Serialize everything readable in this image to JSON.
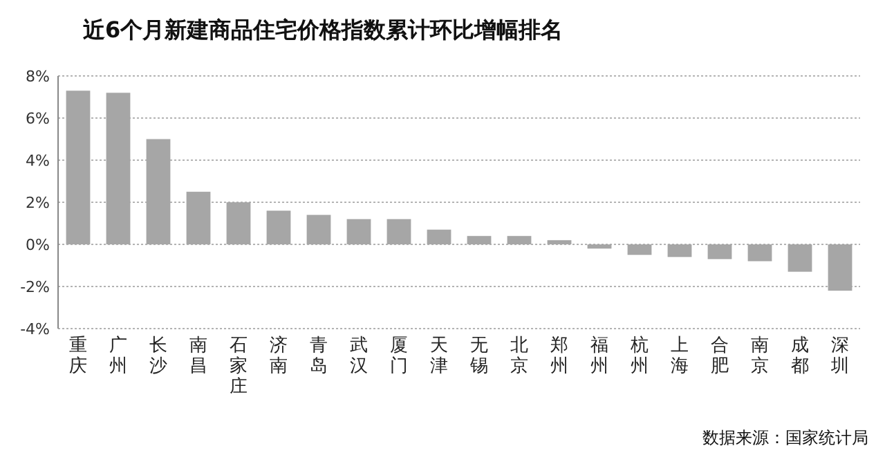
{
  "chart_data": {
    "type": "bar",
    "title": "近6个月新建商品住宅价格指数累计环比增幅排名",
    "categories": [
      "重庆",
      "广州",
      "长沙",
      "南昌",
      "石家庄",
      "济南",
      "青岛",
      "武汉",
      "厦门",
      "天津",
      "无锡",
      "北京",
      "郑州",
      "福州",
      "杭州",
      "上海",
      "合肥",
      "南京",
      "成都",
      "深圳"
    ],
    "values": [
      7.3,
      7.2,
      5.0,
      2.5,
      2.0,
      1.6,
      1.4,
      1.2,
      1.2,
      0.7,
      0.4,
      0.4,
      0.2,
      -0.2,
      -0.5,
      -0.6,
      -0.7,
      -0.8,
      -1.3,
      -2.2
    ],
    "color": "#a6a6a6",
    "ylim": [
      -4,
      8
    ],
    "yticks": [
      {
        "value": -4,
        "label": "-4%"
      },
      {
        "value": -2,
        "label": "-2%"
      },
      {
        "value": 0,
        "label": "0%"
      },
      {
        "value": 2,
        "label": "2%"
      },
      {
        "value": 4,
        "label": "4%"
      },
      {
        "value": 6,
        "label": "6%"
      },
      {
        "value": 8,
        "label": "8%"
      }
    ],
    "grid": "y",
    "annotations": [
      "数据来源：国家统计局"
    ]
  }
}
